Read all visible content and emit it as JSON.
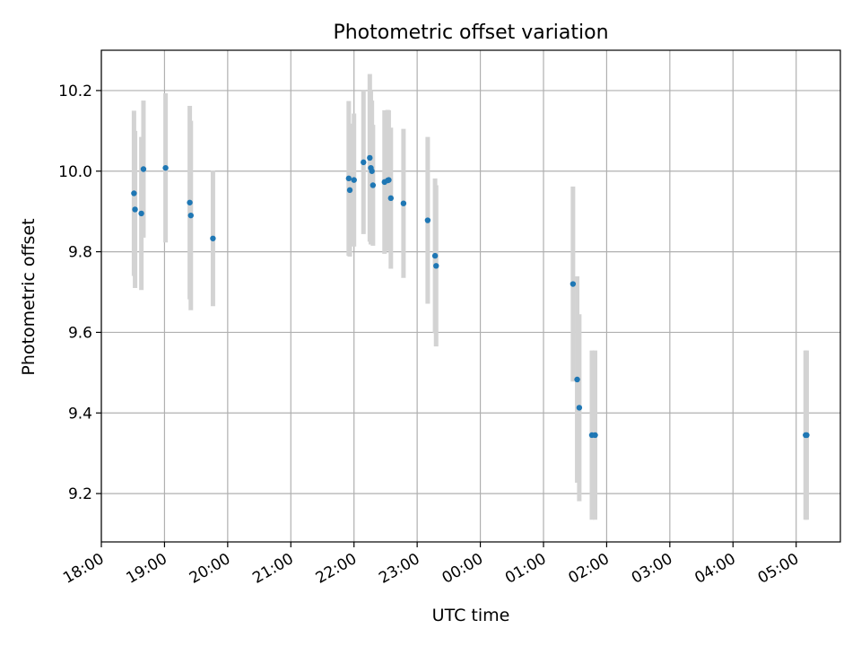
{
  "chart_data": {
    "type": "scatter",
    "title": "Photometric offset variation",
    "xlabel": "UTC time",
    "ylabel": "Photometric offset",
    "x_start": "2000-01-01T18:00",
    "xlim_hours": [
      18.0,
      29.7
    ],
    "ylim": [
      9.08,
      10.3
    ],
    "x_ticks": [
      "18:00",
      "19:00",
      "20:00",
      "21:00",
      "22:00",
      "23:00",
      "00:00",
      "01:00",
      "02:00",
      "03:00",
      "04:00",
      "05:00"
    ],
    "y_ticks": [
      "9.2",
      "9.4",
      "9.6",
      "9.8",
      "10.0",
      "10.2"
    ],
    "y_tick_values": [
      9.2,
      9.4,
      9.6,
      9.8,
      10.0,
      10.2
    ],
    "grid": true,
    "marker_color": "#1f77b4",
    "errorbar_color": "#d3d3d3",
    "points": [
      {
        "t": "18:31",
        "y": 9.945,
        "err": 0.205
      },
      {
        "t": "18:32",
        "y": 9.905,
        "err": 0.195
      },
      {
        "t": "18:38",
        "y": 9.895,
        "err": 0.19
      },
      {
        "t": "18:40",
        "y": 10.005,
        "err": 0.17
      },
      {
        "t": "19:01",
        "y": 10.008,
        "err": 0.185
      },
      {
        "t": "19:24",
        "y": 9.922,
        "err": 0.24
      },
      {
        "t": "19:25",
        "y": 9.89,
        "err": 0.235
      },
      {
        "t": "19:46",
        "y": 9.833,
        "err": 0.168
      },
      {
        "t": "21:55",
        "y": 9.982,
        "err": 0.192
      },
      {
        "t": "21:56",
        "y": 9.953,
        "err": 0.165
      },
      {
        "t": "22:00",
        "y": 9.978,
        "err": 0.165
      },
      {
        "t": "22:09",
        "y": 10.022,
        "err": 0.178
      },
      {
        "t": "22:15",
        "y": 10.033,
        "err": 0.208
      },
      {
        "t": "22:16",
        "y": 10.008,
        "err": 0.19
      },
      {
        "t": "22:17",
        "y": 10.0,
        "err": 0.175
      },
      {
        "t": "22:18",
        "y": 9.965,
        "err": 0.15
      },
      {
        "t": "22:29",
        "y": 9.973,
        "err": 0.178
      },
      {
        "t": "22:32",
        "y": 9.977,
        "err": 0.175
      },
      {
        "t": "22:33",
        "y": 9.978,
        "err": 0.173
      },
      {
        "t": "22:35",
        "y": 9.933,
        "err": 0.175
      },
      {
        "t": "22:47",
        "y": 9.92,
        "err": 0.185
      },
      {
        "t": "23:10",
        "y": 9.878,
        "err": 0.207
      },
      {
        "t": "23:17",
        "y": 9.79,
        "err": 0.192
      },
      {
        "t": "23:18",
        "y": 9.765,
        "err": 0.2
      },
      {
        "t": "01:28",
        "y": 9.72,
        "err": 0.242
      },
      {
        "t": "01:32",
        "y": 9.483,
        "err": 0.256
      },
      {
        "t": "01:34",
        "y": 9.413,
        "err": 0.232
      },
      {
        "t": "01:46",
        "y": 9.345,
        "err": 0.21
      },
      {
        "t": "01:49",
        "y": 9.345,
        "err": 0.21
      },
      {
        "t": "05:09",
        "y": 9.345,
        "err": 0.21
      },
      {
        "t": "05:10",
        "y": 9.345,
        "err": 0.21
      }
    ]
  }
}
